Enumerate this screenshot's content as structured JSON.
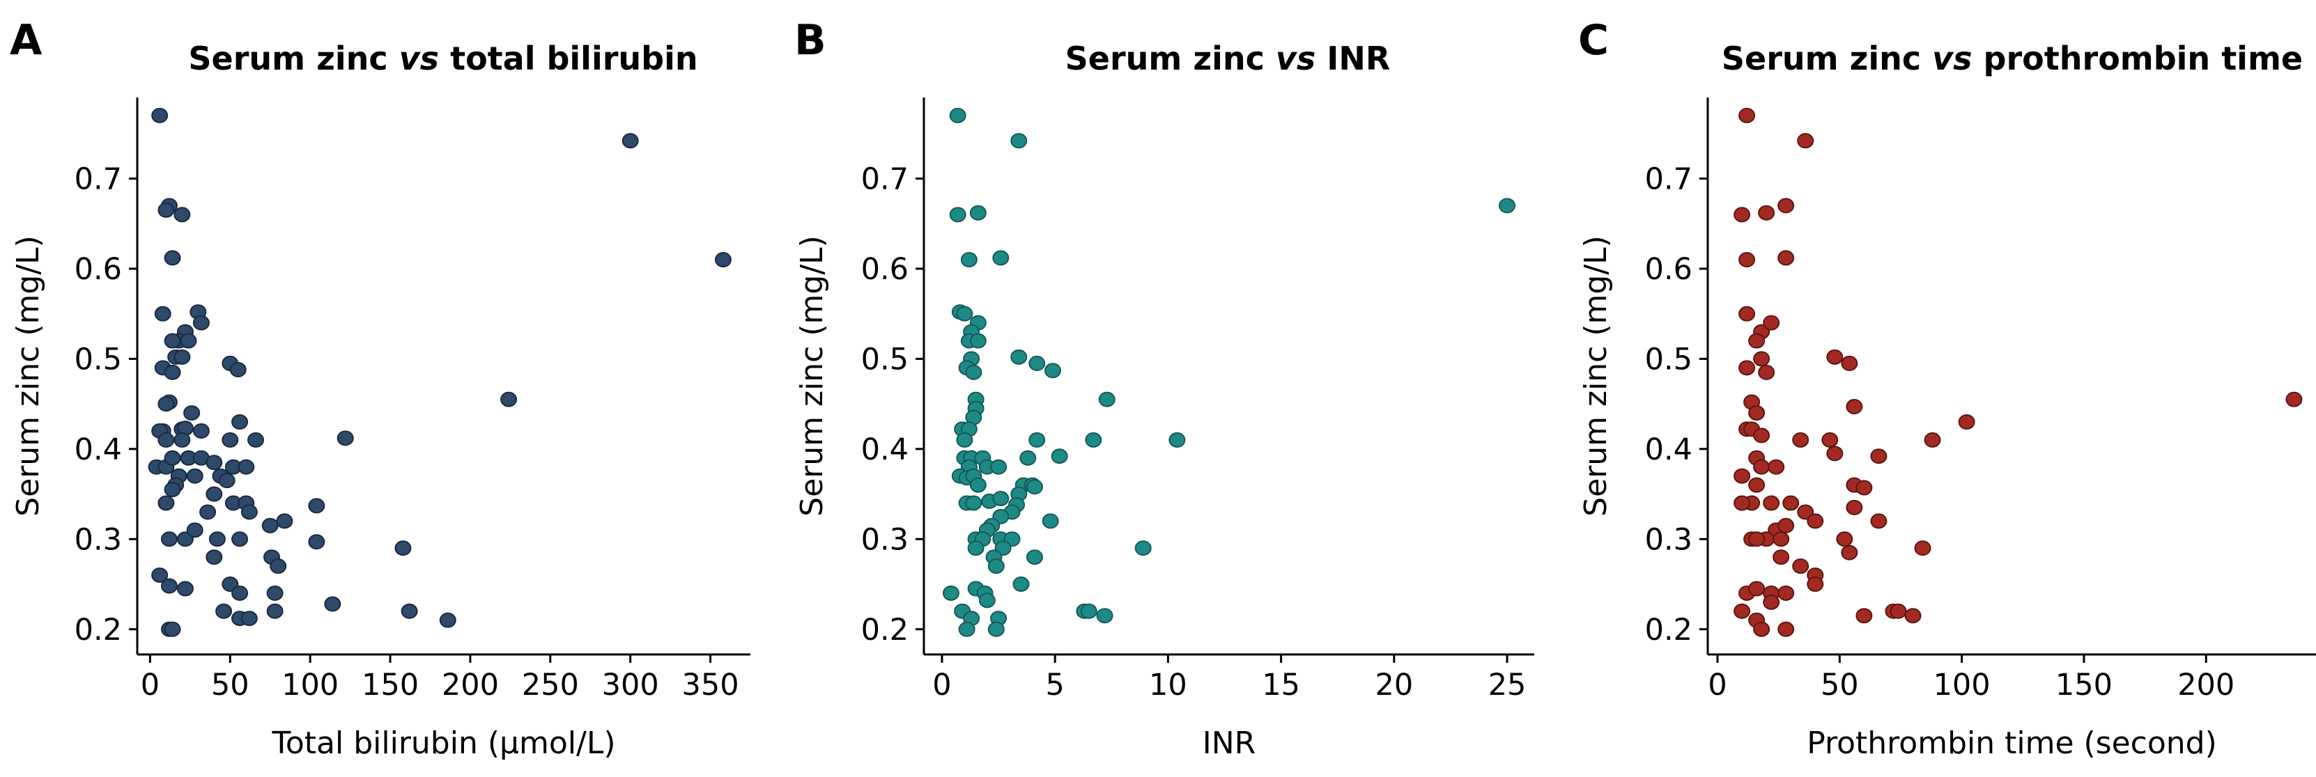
{
  "chart_data": [
    {
      "type": "scatter",
      "panel": "A",
      "title_prefix": "Serum zinc ",
      "title_vs": "vs",
      "title_suffix": " total bilirubin",
      "xlabel": "Total bilirubin (μmol/L)",
      "ylabel": "Serum zinc (mg/L)",
      "xlim": [
        -8,
        375
      ],
      "ylim": [
        0.172,
        0.79
      ],
      "xticks": [
        0,
        50,
        100,
        150,
        200,
        250,
        300,
        350
      ],
      "yticks": [
        0.2,
        0.3,
        0.4,
        0.5,
        0.6,
        0.7
      ],
      "ytick_labels": [
        "0.2",
        "0.3",
        "0.4",
        "0.5",
        "0.6",
        "0.7"
      ],
      "grid": false,
      "marker_color": "#2e4a6b",
      "marker_edge": "#1a2a40",
      "points": [
        [
          6,
          0.77
        ],
        [
          12,
          0.67
        ],
        [
          10,
          0.665
        ],
        [
          20,
          0.66
        ],
        [
          14,
          0.612
        ],
        [
          8,
          0.55
        ],
        [
          30,
          0.552
        ],
        [
          32,
          0.54
        ],
        [
          22,
          0.53
        ],
        [
          18,
          0.52
        ],
        [
          14,
          0.52
        ],
        [
          24,
          0.52
        ],
        [
          8,
          0.49
        ],
        [
          14,
          0.485
        ],
        [
          50,
          0.495
        ],
        [
          55,
          0.488
        ],
        [
          16,
          0.502
        ],
        [
          20,
          0.502
        ],
        [
          12,
          0.452
        ],
        [
          10,
          0.45
        ],
        [
          26,
          0.44
        ],
        [
          20,
          0.422
        ],
        [
          22,
          0.423
        ],
        [
          8,
          0.42
        ],
        [
          6,
          0.42
        ],
        [
          56,
          0.43
        ],
        [
          32,
          0.42
        ],
        [
          10,
          0.41
        ],
        [
          20,
          0.41
        ],
        [
          50,
          0.41
        ],
        [
          66,
          0.41
        ],
        [
          122,
          0.412
        ],
        [
          4,
          0.38
        ],
        [
          10,
          0.38
        ],
        [
          14,
          0.39
        ],
        [
          24,
          0.39
        ],
        [
          32,
          0.39
        ],
        [
          40,
          0.385
        ],
        [
          52,
          0.38
        ],
        [
          60,
          0.38
        ],
        [
          84,
          0.32
        ],
        [
          18,
          0.37
        ],
        [
          28,
          0.37
        ],
        [
          44,
          0.37
        ],
        [
          48,
          0.365
        ],
        [
          16,
          0.36
        ],
        [
          14,
          0.355
        ],
        [
          40,
          0.35
        ],
        [
          52,
          0.34
        ],
        [
          60,
          0.34
        ],
        [
          10,
          0.34
        ],
        [
          36,
          0.33
        ],
        [
          62,
          0.33
        ],
        [
          75,
          0.315
        ],
        [
          104,
          0.337
        ],
        [
          22,
          0.3
        ],
        [
          28,
          0.31
        ],
        [
          12,
          0.3
        ],
        [
          42,
          0.3
        ],
        [
          56,
          0.3
        ],
        [
          104,
          0.297
        ],
        [
          158,
          0.29
        ],
        [
          40,
          0.28
        ],
        [
          76,
          0.28
        ],
        [
          80,
          0.27
        ],
        [
          6,
          0.26
        ],
        [
          50,
          0.25
        ],
        [
          22,
          0.245
        ],
        [
          12,
          0.248
        ],
        [
          56,
          0.24
        ],
        [
          78,
          0.24
        ],
        [
          114,
          0.228
        ],
        [
          46,
          0.22
        ],
        [
          78,
          0.22
        ],
        [
          162,
          0.22
        ],
        [
          186,
          0.21
        ],
        [
          56,
          0.212
        ],
        [
          62,
          0.212
        ],
        [
          12,
          0.2
        ],
        [
          14,
          0.2
        ],
        [
          224,
          0.455
        ],
        [
          300,
          0.742
        ],
        [
          358,
          0.61
        ]
      ]
    },
    {
      "type": "scatter",
      "panel": "B",
      "title_prefix": "Serum zinc ",
      "title_vs": "vs",
      "title_suffix": " INR",
      "xlabel": "INR",
      "ylabel": "Serum zinc (mg/L)",
      "xlim": [
        -0.8,
        26.2
      ],
      "ylim": [
        0.172,
        0.79
      ],
      "xticks": [
        0,
        5,
        10,
        15,
        20,
        25
      ],
      "yticks": [
        0.2,
        0.3,
        0.4,
        0.5,
        0.6,
        0.7
      ],
      "ytick_labels": [
        "0.2",
        "0.3",
        "0.4",
        "0.5",
        "0.6",
        "0.7"
      ],
      "grid": false,
      "marker_color": "#1e8a86",
      "marker_edge": "#135a58",
      "points": [
        [
          0.7,
          0.77
        ],
        [
          3.4,
          0.742
        ],
        [
          0.7,
          0.66
        ],
        [
          1.6,
          0.662
        ],
        [
          1.2,
          0.61
        ],
        [
          2.6,
          0.612
        ],
        [
          0.8,
          0.552
        ],
        [
          1.0,
          0.55
        ],
        [
          1.6,
          0.54
        ],
        [
          1.3,
          0.53
        ],
        [
          1.2,
          0.52
        ],
        [
          1.6,
          0.52
        ],
        [
          1.3,
          0.5
        ],
        [
          1.1,
          0.49
        ],
        [
          1.4,
          0.485
        ],
        [
          3.4,
          0.502
        ],
        [
          4.2,
          0.495
        ],
        [
          4.9,
          0.487
        ],
        [
          7.3,
          0.455
        ],
        [
          1.5,
          0.455
        ],
        [
          1.5,
          0.445
        ],
        [
          1.4,
          0.435
        ],
        [
          0.9,
          0.422
        ],
        [
          1.2,
          0.422
        ],
        [
          1.0,
          0.41
        ],
        [
          4.2,
          0.41
        ],
        [
          6.7,
          0.41
        ],
        [
          10.4,
          0.41
        ],
        [
          1.0,
          0.39
        ],
        [
          1.3,
          0.39
        ],
        [
          1.8,
          0.39
        ],
        [
          3.8,
          0.39
        ],
        [
          5.2,
          0.392
        ],
        [
          1.2,
          0.38
        ],
        [
          2.0,
          0.38
        ],
        [
          2.5,
          0.38
        ],
        [
          0.8,
          0.37
        ],
        [
          1.1,
          0.368
        ],
        [
          1.4,
          0.37
        ],
        [
          1.6,
          0.36
        ],
        [
          3.6,
          0.36
        ],
        [
          4.0,
          0.36
        ],
        [
          4.1,
          0.358
        ],
        [
          3.4,
          0.35
        ],
        [
          2.1,
          0.342
        ],
        [
          2.6,
          0.345
        ],
        [
          1.1,
          0.34
        ],
        [
          1.4,
          0.34
        ],
        [
          3.3,
          0.338
        ],
        [
          3.1,
          0.33
        ],
        [
          2.6,
          0.325
        ],
        [
          4.8,
          0.32
        ],
        [
          2.2,
          0.315
        ],
        [
          2.0,
          0.31
        ],
        [
          1.5,
          0.3
        ],
        [
          1.8,
          0.3
        ],
        [
          2.6,
          0.3
        ],
        [
          3.1,
          0.3
        ],
        [
          1.5,
          0.29
        ],
        [
          2.7,
          0.29
        ],
        [
          8.9,
          0.29
        ],
        [
          2.3,
          0.28
        ],
        [
          4.1,
          0.28
        ],
        [
          2.4,
          0.27
        ],
        [
          3.5,
          0.25
        ],
        [
          0.4,
          0.24
        ],
        [
          1.5,
          0.245
        ],
        [
          1.9,
          0.24
        ],
        [
          2.0,
          0.232
        ],
        [
          0.9,
          0.22
        ],
        [
          1.3,
          0.212
        ],
        [
          2.5,
          0.212
        ],
        [
          6.3,
          0.22
        ],
        [
          6.5,
          0.22
        ],
        [
          7.2,
          0.215
        ],
        [
          1.1,
          0.2
        ],
        [
          2.4,
          0.2
        ],
        [
          25.0,
          0.67
        ]
      ]
    },
    {
      "type": "scatter",
      "panel": "C",
      "title_prefix": "Serum zinc ",
      "title_vs": "vs",
      "title_suffix": " prothrombin time",
      "xlabel": "Prothrombin time (second)",
      "ylabel": "Serum zinc (mg/L)",
      "xlim": [
        -4,
        245
      ],
      "ylim": [
        0.172,
        0.79
      ],
      "xticks": [
        0,
        50,
        100,
        150,
        200
      ],
      "yticks": [
        0.2,
        0.3,
        0.4,
        0.5,
        0.6,
        0.7
      ],
      "ytick_labels": [
        "0.2",
        "0.3",
        "0.4",
        "0.5",
        "0.6",
        "0.7"
      ],
      "grid": false,
      "marker_color": "#a32a22",
      "marker_edge": "#5e1510",
      "points": [
        [
          12,
          0.77
        ],
        [
          36,
          0.742
        ],
        [
          28,
          0.67
        ],
        [
          10,
          0.66
        ],
        [
          20,
          0.662
        ],
        [
          12,
          0.61
        ],
        [
          28,
          0.612
        ],
        [
          12,
          0.55
        ],
        [
          18,
          0.53
        ],
        [
          16,
          0.52
        ],
        [
          22,
          0.54
        ],
        [
          18,
          0.5
        ],
        [
          12,
          0.49
        ],
        [
          20,
          0.485
        ],
        [
          48,
          0.502
        ],
        [
          54,
          0.495
        ],
        [
          56,
          0.447
        ],
        [
          14,
          0.452
        ],
        [
          16,
          0.44
        ],
        [
          12,
          0.422
        ],
        [
          14,
          0.422
        ],
        [
          18,
          0.415
        ],
        [
          34,
          0.41
        ],
        [
          46,
          0.41
        ],
        [
          88,
          0.41
        ],
        [
          102,
          0.43
        ],
        [
          16,
          0.39
        ],
        [
          18,
          0.38
        ],
        [
          24,
          0.38
        ],
        [
          48,
          0.395
        ],
        [
          66,
          0.392
        ],
        [
          10,
          0.37
        ],
        [
          16,
          0.36
        ],
        [
          56,
          0.36
        ],
        [
          60,
          0.357
        ],
        [
          14,
          0.34
        ],
        [
          22,
          0.34
        ],
        [
          30,
          0.34
        ],
        [
          36,
          0.33
        ],
        [
          56,
          0.335
        ],
        [
          10,
          0.34
        ],
        [
          40,
          0.32
        ],
        [
          24,
          0.31
        ],
        [
          28,
          0.315
        ],
        [
          14,
          0.3
        ],
        [
          20,
          0.3
        ],
        [
          26,
          0.3
        ],
        [
          52,
          0.3
        ],
        [
          66,
          0.32
        ],
        [
          16,
          0.3
        ],
        [
          34,
          0.27
        ],
        [
          40,
          0.26
        ],
        [
          26,
          0.28
        ],
        [
          54,
          0.285
        ],
        [
          84,
          0.29
        ],
        [
          40,
          0.25
        ],
        [
          12,
          0.24
        ],
        [
          16,
          0.245
        ],
        [
          22,
          0.24
        ],
        [
          28,
          0.24
        ],
        [
          22,
          0.23
        ],
        [
          10,
          0.22
        ],
        [
          16,
          0.21
        ],
        [
          18,
          0.2
        ],
        [
          28,
          0.2
        ],
        [
          60,
          0.215
        ],
        [
          72,
          0.22
        ],
        [
          74,
          0.22
        ],
        [
          80,
          0.215
        ],
        [
          236,
          0.455
        ]
      ]
    }
  ]
}
